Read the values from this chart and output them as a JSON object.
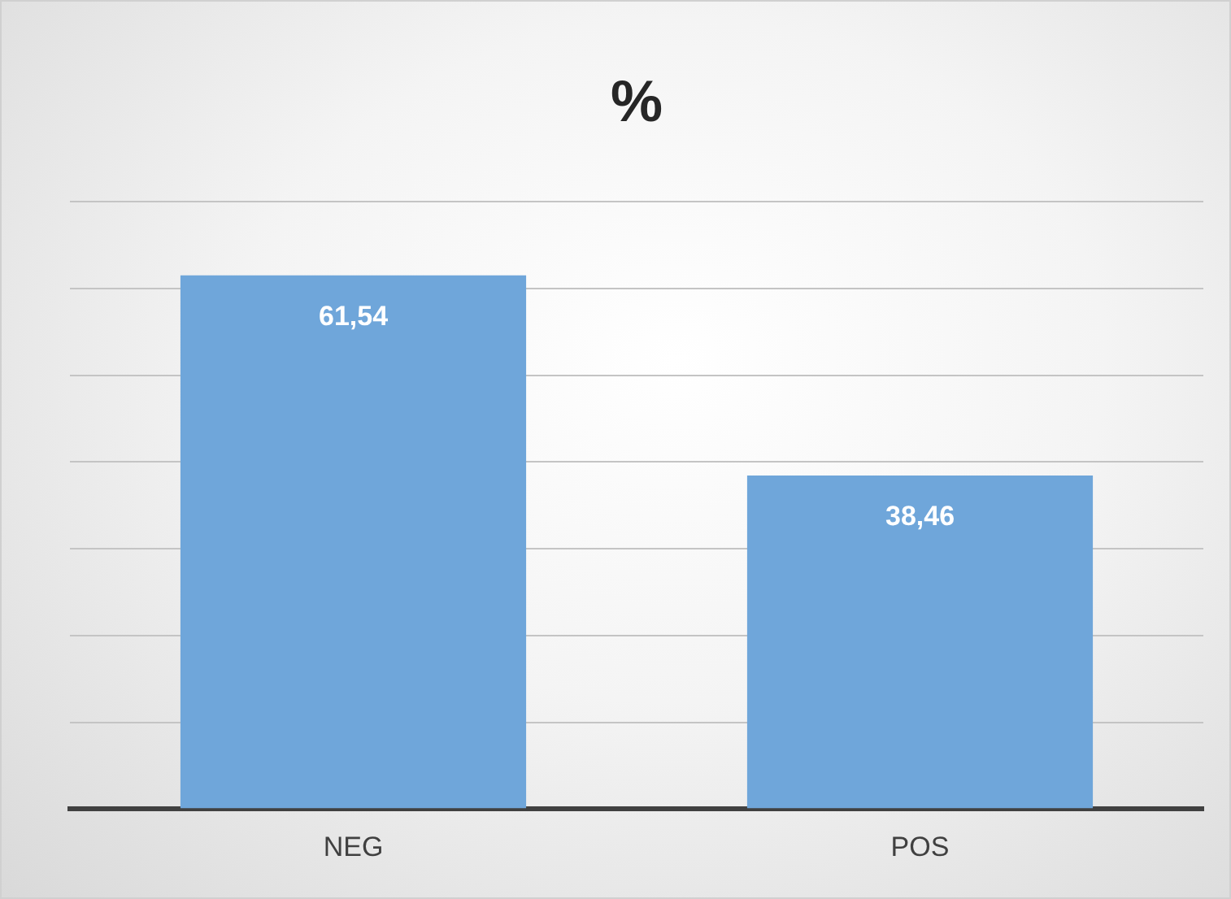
{
  "chart_data": {
    "type": "bar",
    "title": "%",
    "categories": [
      "NEG",
      "POS"
    ],
    "values": [
      61.54,
      38.46
    ],
    "color": "#6fa6da",
    "value_labels": [
      "61,54",
      "38,46"
    ],
    "ylim": [
      0,
      70
    ],
    "yticks": [
      {
        "value": 0,
        "label": null
      },
      {
        "value": 10,
        "label": null
      },
      {
        "value": 20,
        "label": null
      },
      {
        "value": 30,
        "label": null
      },
      {
        "value": 40,
        "label": null
      },
      {
        "value": 50,
        "label": null
      },
      {
        "value": 60,
        "label": null
      },
      {
        "value": 70,
        "label": null
      }
    ],
    "grid": "y",
    "tick_labels": "x",
    "legend": false
  }
}
